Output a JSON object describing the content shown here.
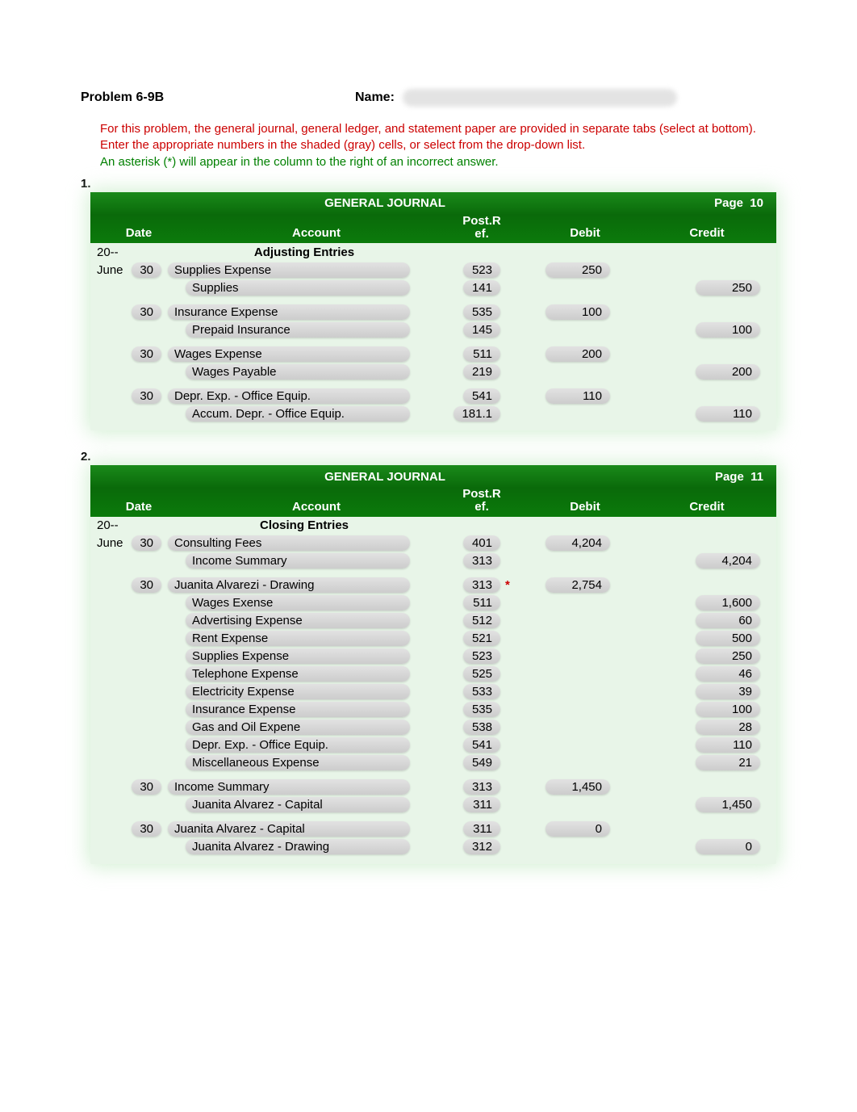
{
  "header": {
    "problem": "Problem 6-9B",
    "name_label": "Name:"
  },
  "instructions": {
    "line1": "For this problem, the general journal, general ledger, and statement paper are provided in separate tabs (select at bottom).",
    "line2": "Enter the appropriate numbers in the shaded (gray) cells, or select from the drop-down list.",
    "line3": "An asterisk (*) will appear in the column to the right of an incorrect answer."
  },
  "labels": {
    "journal_title": "GENERAL JOURNAL",
    "page_label": "Page",
    "date": "Date",
    "account": "Account",
    "postref": "Post.R\nef.",
    "debit": "Debit",
    "credit": "Credit"
  },
  "sections": [
    {
      "num": "1.",
      "page": "10",
      "year": "20--",
      "heading": "Adjusting Entries",
      "groups": [
        {
          "month": "June",
          "day": "30",
          "lines": [
            {
              "acct": "Supplies Expense",
              "ref": "523",
              "debit": "250",
              "credit": "",
              "star": ""
            },
            {
              "acct": "Supplies",
              "ref": "141",
              "debit": "",
              "credit": "250",
              "star": "",
              "indent": true
            }
          ]
        },
        {
          "month": "",
          "day": "30",
          "lines": [
            {
              "acct": "Insurance Expense",
              "ref": "535",
              "debit": "100",
              "credit": "",
              "star": ""
            },
            {
              "acct": "Prepaid Insurance",
              "ref": "145",
              "debit": "",
              "credit": "100",
              "star": "",
              "indent": true
            }
          ]
        },
        {
          "month": "",
          "day": "30",
          "lines": [
            {
              "acct": "Wages Expense",
              "ref": "511",
              "debit": "200",
              "credit": "",
              "star": ""
            },
            {
              "acct": "Wages Payable",
              "ref": "219",
              "debit": "",
              "credit": "200",
              "star": "",
              "indent": true
            }
          ]
        },
        {
          "month": "",
          "day": "30",
          "lines": [
            {
              "acct": "Depr. Exp. - Office Equip.",
              "ref": "541",
              "debit": "110",
              "credit": "",
              "star": ""
            },
            {
              "acct": "Accum. Depr. - Office Equip.",
              "ref": "181.1",
              "debit": "",
              "credit": "110",
              "star": "",
              "indent": true
            }
          ]
        }
      ]
    },
    {
      "num": "2.",
      "page": "11",
      "year": "20--",
      "heading": "Closing Entries",
      "groups": [
        {
          "month": "June",
          "day": "30",
          "lines": [
            {
              "acct": "Consulting Fees",
              "ref": "401",
              "debit": "4,204",
              "credit": "",
              "star": ""
            },
            {
              "acct": "Income Summary",
              "ref": "313",
              "debit": "",
              "credit": "4,204",
              "star": "",
              "indent": true
            }
          ]
        },
        {
          "month": "",
          "day": "30",
          "lines": [
            {
              "acct": "Juanita Alvarezi - Drawing",
              "ref": "313",
              "debit": "2,754",
              "credit": "",
              "star": "*"
            },
            {
              "acct": "Wages Exense",
              "ref": "511",
              "debit": "",
              "credit": "1,600",
              "star": "",
              "indent": true
            },
            {
              "acct": "Advertising Expense",
              "ref": "512",
              "debit": "",
              "credit": "60",
              "star": "",
              "indent": true
            },
            {
              "acct": "Rent Expense",
              "ref": "521",
              "debit": "",
              "credit": "500",
              "star": "",
              "indent": true
            },
            {
              "acct": "Supplies Expense",
              "ref": "523",
              "debit": "",
              "credit": "250",
              "star": "",
              "indent": true
            },
            {
              "acct": "Telephone Expense",
              "ref": "525",
              "debit": "",
              "credit": "46",
              "star": "",
              "indent": true
            },
            {
              "acct": "Electricity Expense",
              "ref": "533",
              "debit": "",
              "credit": "39",
              "star": "",
              "indent": true
            },
            {
              "acct": "Insurance Expense",
              "ref": "535",
              "debit": "",
              "credit": "100",
              "star": "",
              "indent": true
            },
            {
              "acct": "Gas and Oil Expene",
              "ref": "538",
              "debit": "",
              "credit": "28",
              "star": "",
              "indent": true
            },
            {
              "acct": "Depr. Exp. - Office Equip.",
              "ref": "541",
              "debit": "",
              "credit": "110",
              "star": "",
              "indent": true
            },
            {
              "acct": "Miscellaneous Expense",
              "ref": "549",
              "debit": "",
              "credit": "21",
              "star": "",
              "indent": true
            }
          ]
        },
        {
          "month": "",
          "day": "30",
          "lines": [
            {
              "acct": "Income Summary",
              "ref": "313",
              "debit": "1,450",
              "credit": "",
              "star": ""
            },
            {
              "acct": "Juanita Alvarez - Capital",
              "ref": "311",
              "debit": "",
              "credit": "1,450",
              "star": "",
              "indent": true
            }
          ]
        },
        {
          "month": "",
          "day": "30",
          "lines": [
            {
              "acct": "Juanita Alvarez - Capital",
              "ref": "311",
              "debit": "0",
              "credit": "",
              "star": ""
            },
            {
              "acct": "Juanita Alvarez - Drawing",
              "ref": "312",
              "debit": "",
              "credit": "0",
              "star": "",
              "indent": true
            }
          ]
        }
      ]
    }
  ]
}
